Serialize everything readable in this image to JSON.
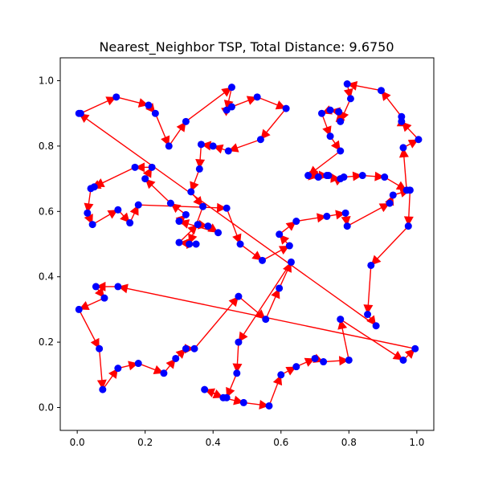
{
  "chart_data": {
    "type": "line",
    "title": "Nearest_Neighbor TSP, Total Distance: 9.6750",
    "xlabel": "",
    "ylabel": "",
    "xlim": [
      -0.05,
      1.05
    ],
    "ylim": [
      -0.07,
      1.07
    ],
    "xticks": [
      0.0,
      0.2,
      0.4,
      0.6,
      0.8,
      1.0
    ],
    "yticks": [
      0.0,
      0.2,
      0.4,
      0.6,
      0.8,
      1.0
    ],
    "xtick_labels": [
      "0.0",
      "0.2",
      "0.4",
      "0.6",
      "0.8",
      "1.0"
    ],
    "ytick_labels": [
      "0.0",
      "0.2",
      "0.4",
      "0.6",
      "0.8",
      "1.0"
    ],
    "grid": false,
    "point_color": "#0000ff",
    "path_color": "#ff0000",
    "tour": [
      [
        0.01,
        0.9
      ],
      [
        0.115,
        0.95
      ],
      [
        0.21,
        0.925
      ],
      [
        0.23,
        0.9
      ],
      [
        0.27,
        0.8
      ],
      [
        0.32,
        0.875
      ],
      [
        0.455,
        0.98
      ],
      [
        0.44,
        0.91
      ],
      [
        0.455,
        0.92
      ],
      [
        0.53,
        0.95
      ],
      [
        0.615,
        0.915
      ],
      [
        0.54,
        0.82
      ],
      [
        0.445,
        0.785
      ],
      [
        0.4,
        0.8
      ],
      [
        0.365,
        0.805
      ],
      [
        0.36,
        0.73
      ],
      [
        0.335,
        0.66
      ],
      [
        0.37,
        0.615
      ],
      [
        0.33,
        0.5
      ],
      [
        0.35,
        0.5
      ],
      [
        0.3,
        0.505
      ],
      [
        0.355,
        0.56
      ],
      [
        0.385,
        0.555
      ],
      [
        0.415,
        0.535
      ],
      [
        0.3,
        0.57
      ],
      [
        0.32,
        0.59
      ],
      [
        0.275,
        0.625
      ],
      [
        0.2,
        0.7
      ],
      [
        0.22,
        0.735
      ],
      [
        0.17,
        0.735
      ],
      [
        0.05,
        0.675
      ],
      [
        0.04,
        0.67
      ],
      [
        0.03,
        0.595
      ],
      [
        0.045,
        0.56
      ],
      [
        0.12,
        0.605
      ],
      [
        0.155,
        0.565
      ],
      [
        0.18,
        0.62
      ],
      [
        0.44,
        0.61
      ],
      [
        0.48,
        0.5
      ],
      [
        0.545,
        0.45
      ],
      [
        0.625,
        0.495
      ],
      [
        0.595,
        0.53
      ],
      [
        0.645,
        0.57
      ],
      [
        0.735,
        0.585
      ],
      [
        0.79,
        0.595
      ],
      [
        0.795,
        0.555
      ],
      [
        0.92,
        0.625
      ],
      [
        0.93,
        0.65
      ],
      [
        0.98,
        0.665
      ],
      [
        0.975,
        0.555
      ],
      [
        0.865,
        0.435
      ],
      [
        0.855,
        0.285
      ],
      [
        0.88,
        0.25
      ],
      [
        0.005,
        0.9
      ]
    ],
    "tour2": [
      [
        0.12,
        0.37
      ],
      [
        0.055,
        0.37
      ],
      [
        0.08,
        0.335
      ],
      [
        0.005,
        0.3
      ],
      [
        0.065,
        0.18
      ],
      [
        0.075,
        0.055
      ],
      [
        0.12,
        0.12
      ],
      [
        0.18,
        0.135
      ],
      [
        0.255,
        0.105
      ],
      [
        0.29,
        0.15
      ],
      [
        0.32,
        0.18
      ],
      [
        0.345,
        0.18
      ],
      [
        0.475,
        0.34
      ],
      [
        0.555,
        0.27
      ],
      [
        0.595,
        0.365
      ],
      [
        0.63,
        0.445
      ],
      [
        0.475,
        0.2
      ],
      [
        0.47,
        0.105
      ],
      [
        0.44,
        0.03
      ],
      [
        0.375,
        0.055
      ],
      [
        0.43,
        0.03
      ],
      [
        0.49,
        0.015
      ],
      [
        0.565,
        0.005
      ],
      [
        0.6,
        0.1
      ],
      [
        0.645,
        0.125
      ],
      [
        0.7,
        0.15
      ],
      [
        0.725,
        0.14
      ],
      [
        0.8,
        0.145
      ],
      [
        0.775,
        0.27
      ],
      [
        0.96,
        0.145
      ],
      [
        0.995,
        0.18
      ],
      [
        0.12,
        0.37
      ]
    ],
    "tour3": [
      [
        0.735,
        0.71
      ],
      [
        0.74,
        0.71
      ],
      [
        0.68,
        0.71
      ],
      [
        0.71,
        0.705
      ],
      [
        0.775,
        0.7
      ],
      [
        0.785,
        0.705
      ],
      [
        0.84,
        0.71
      ],
      [
        0.905,
        0.705
      ],
      [
        0.97,
        0.665
      ],
      [
        0.96,
        0.795
      ],
      [
        1.005,
        0.82
      ],
      [
        0.955,
        0.875
      ],
      [
        0.955,
        0.89
      ],
      [
        0.895,
        0.97
      ],
      [
        0.795,
        0.99
      ],
      [
        0.805,
        0.945
      ],
      [
        0.775,
        0.875
      ],
      [
        0.77,
        0.905
      ],
      [
        0.745,
        0.91
      ],
      [
        0.72,
        0.9
      ],
      [
        0.745,
        0.83
      ],
      [
        0.775,
        0.785
      ],
      [
        0.68,
        0.71
      ]
    ]
  }
}
